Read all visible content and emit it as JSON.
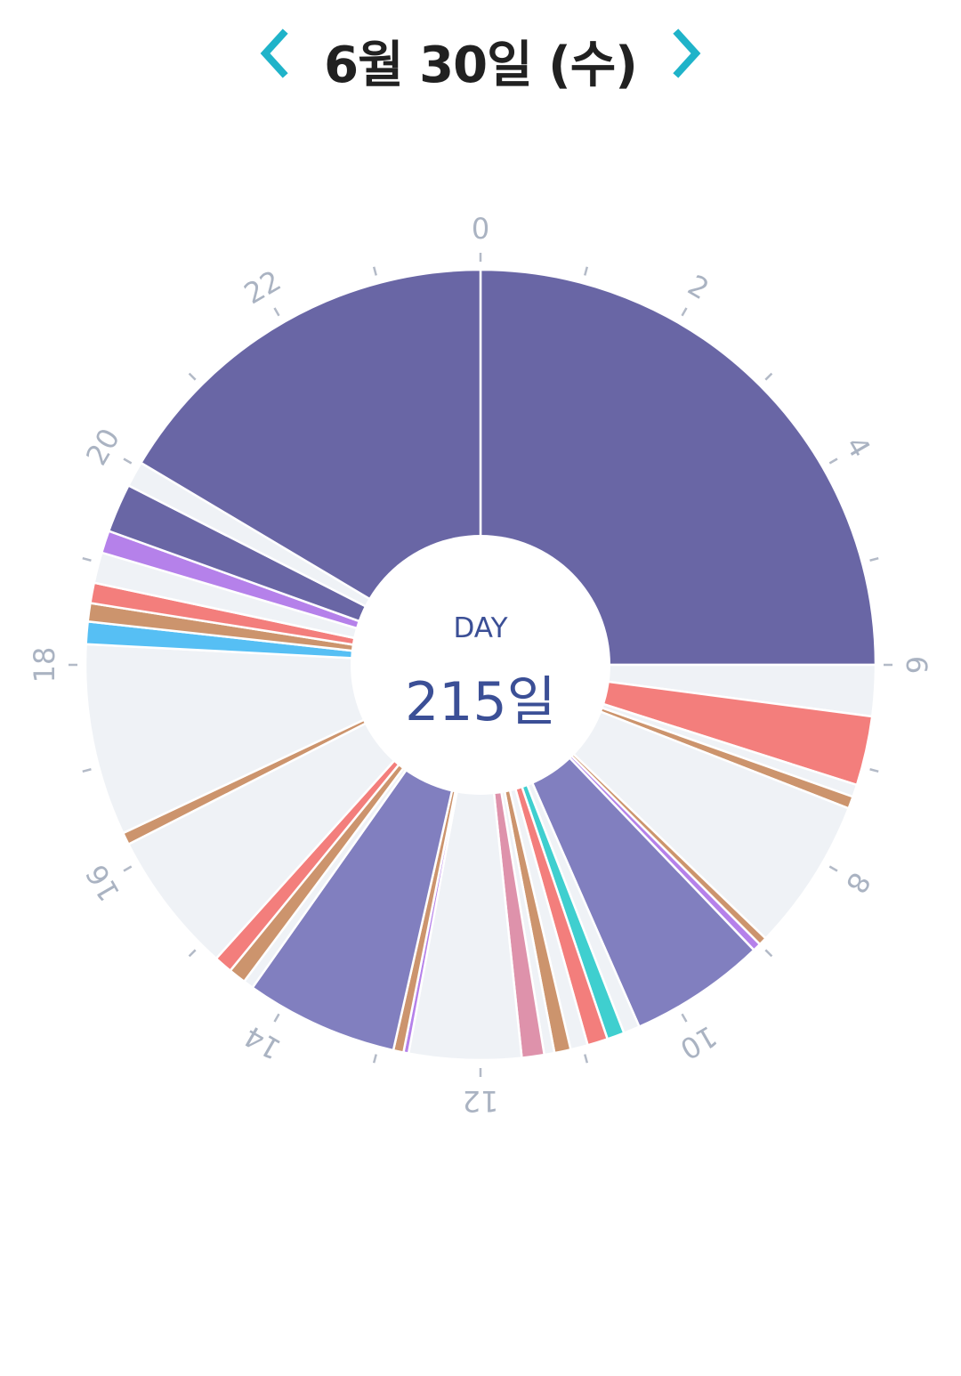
{
  "header": {
    "date": "6월 30일 (수)",
    "prev_icon": "chevron-left-icon",
    "next_icon": "chevron-right-icon",
    "accent": "#1fb3c9"
  },
  "center": {
    "label": "DAY",
    "value": "215일"
  },
  "chart_data": {
    "type": "pie",
    "unit": "hours",
    "start": 0,
    "end": 24,
    "hour_labels": [
      "0",
      "2",
      "4",
      "6",
      "8",
      "10",
      "12",
      "14",
      "16",
      "18",
      "20",
      "22"
    ],
    "segments": [
      {
        "start": 0.0,
        "end": 6.0,
        "color": "#6966a5"
      },
      {
        "start": 6.0,
        "end": 6.5,
        "color": "#eff2f6"
      },
      {
        "start": 6.5,
        "end": 7.18,
        "color": "#f37e7c"
      },
      {
        "start": 7.18,
        "end": 7.3,
        "color": "#eff2f6"
      },
      {
        "start": 7.3,
        "end": 7.42,
        "color": "#cc946d"
      },
      {
        "start": 7.42,
        "end": 8.92,
        "color": "#eff2f6"
      },
      {
        "start": 8.92,
        "end": 9.0,
        "color": "#cc946d"
      },
      {
        "start": 9.0,
        "end": 9.08,
        "color": "#b581ea"
      },
      {
        "start": 9.08,
        "end": 10.42,
        "color": "#817fbf"
      },
      {
        "start": 10.42,
        "end": 10.58,
        "color": "#eff2f6"
      },
      {
        "start": 10.58,
        "end": 10.75,
        "color": "#3fcfcf"
      },
      {
        "start": 10.75,
        "end": 10.95,
        "color": "#f37e7c"
      },
      {
        "start": 10.95,
        "end": 11.12,
        "color": "#eff2f6"
      },
      {
        "start": 11.12,
        "end": 11.28,
        "color": "#cc946d"
      },
      {
        "start": 11.28,
        "end": 11.38,
        "color": "#eff2f6"
      },
      {
        "start": 11.38,
        "end": 11.6,
        "color": "#de92ab"
      },
      {
        "start": 11.6,
        "end": 12.7,
        "color": "#eff2f6"
      },
      {
        "start": 12.7,
        "end": 12.75,
        "color": "#b581ea"
      },
      {
        "start": 12.75,
        "end": 12.85,
        "color": "#cc946d"
      },
      {
        "start": 12.85,
        "end": 14.35,
        "color": "#817fbf"
      },
      {
        "start": 14.35,
        "end": 14.45,
        "color": "#eff2f6"
      },
      {
        "start": 14.45,
        "end": 14.62,
        "color": "#cc946d"
      },
      {
        "start": 14.62,
        "end": 14.8,
        "color": "#f37e7c"
      },
      {
        "start": 14.8,
        "end": 16.2,
        "color": "#eff2f6"
      },
      {
        "start": 16.2,
        "end": 16.32,
        "color": "#cc946d"
      },
      {
        "start": 16.32,
        "end": 18.2,
        "color": "#eff2f6"
      },
      {
        "start": 18.2,
        "end": 18.42,
        "color": "#56bff4"
      },
      {
        "start": 18.42,
        "end": 18.6,
        "color": "#cc946d"
      },
      {
        "start": 18.6,
        "end": 18.8,
        "color": "#f37e7c"
      },
      {
        "start": 18.8,
        "end": 19.1,
        "color": "#eff2f6"
      },
      {
        "start": 19.1,
        "end": 19.32,
        "color": "#b581ea"
      },
      {
        "start": 19.32,
        "end": 19.8,
        "color": "#6966a5"
      },
      {
        "start": 19.8,
        "end": 20.05,
        "color": "#eff2f6"
      },
      {
        "start": 20.05,
        "end": 24.0,
        "color": "#6966a5"
      }
    ]
  }
}
